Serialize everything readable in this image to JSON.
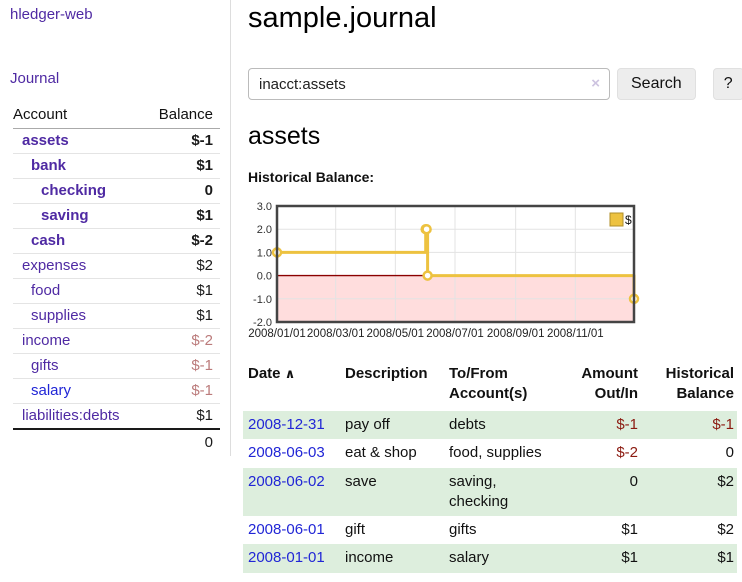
{
  "sidebar": {
    "app_title": "hledger-web",
    "journal_label": "Journal",
    "accounts_table": {
      "account_header": "Account",
      "balance_header": "Balance",
      "rows": [
        {
          "name": "assets",
          "balance": "$-1",
          "level": 1,
          "matched": true,
          "neg": true,
          "blue": false
        },
        {
          "name": "bank",
          "balance": "$1",
          "level": 2,
          "matched": true,
          "neg": false,
          "blue": false
        },
        {
          "name": "checking",
          "balance": "0",
          "level": 3,
          "matched": true,
          "neg": false,
          "blue": false
        },
        {
          "name": "saving",
          "balance": "$1",
          "level": 3,
          "matched": true,
          "neg": false,
          "blue": false
        },
        {
          "name": "cash",
          "balance": "$-2",
          "level": 2,
          "matched": true,
          "neg": true,
          "blue": false
        },
        {
          "name": "expenses",
          "balance": "$2",
          "level": 1,
          "matched": false,
          "neg": false,
          "blue": false
        },
        {
          "name": "food",
          "balance": "$1",
          "level": 2,
          "matched": false,
          "neg": false,
          "blue": false
        },
        {
          "name": "supplies",
          "balance": "$1",
          "level": 2,
          "matched": false,
          "neg": false,
          "blue": false
        },
        {
          "name": "income",
          "balance": "$-2",
          "level": 1,
          "matched": false,
          "neg": true,
          "blue": false
        },
        {
          "name": "gifts",
          "balance": "$-1",
          "level": 2,
          "matched": false,
          "neg": true,
          "blue": false
        },
        {
          "name": "salary",
          "balance": "$-1",
          "level": 2,
          "matched": false,
          "neg": true,
          "blue": true
        },
        {
          "name": "liabilities:debts",
          "balance": "$1",
          "level": 1,
          "matched": false,
          "neg": false,
          "blue": false
        }
      ],
      "total": "0"
    }
  },
  "header": {
    "title": "sample.journal"
  },
  "search": {
    "value": "inacct:assets",
    "clear_icon": "×",
    "button_label": "Search",
    "help_label": "?"
  },
  "account_page": {
    "heading": "assets",
    "chart_label": "Historical Balance:"
  },
  "chart_data": {
    "type": "line",
    "title": "Historical Balance",
    "style": "step-after",
    "xrange": [
      "2008-01-01",
      "2008-12-31"
    ],
    "ylim": [
      -2,
      3
    ],
    "yticks": [
      3.0,
      2.0,
      1.0,
      0.0,
      -1.0,
      -2.0
    ],
    "xticks": [
      {
        "label": "2008/01/01",
        "date": "2008-01-01"
      },
      {
        "label": "2008/03/01",
        "date": "2008-03-01"
      },
      {
        "label": "2008/05/01",
        "date": "2008-05-01"
      },
      {
        "label": "2008/07/01",
        "date": "2008-07-01"
      },
      {
        "label": "2008/09/01",
        "date": "2008-09-01"
      },
      {
        "label": "2008/11/01",
        "date": "2008-11-01"
      }
    ],
    "series": [
      {
        "name": "$",
        "color": "#EDC240",
        "points": [
          [
            "2008-01-01",
            1
          ],
          [
            "2008-06-01",
            2
          ],
          [
            "2008-06-02",
            2
          ],
          [
            "2008-06-03",
            0
          ],
          [
            "2008-12-31",
            -1
          ]
        ]
      }
    ],
    "legend_position": "top-right",
    "grid": true,
    "negative_region_color": "#ffdddd",
    "zero_line_color": "#8b0000",
    "border_color": "#444444",
    "grid_color": "#e3e3e3"
  },
  "register": {
    "headers": {
      "date": "Date",
      "sort_icon": "∧",
      "description": "Description",
      "accounts": "To/From Account(s)",
      "amount": "Amount Out/In",
      "balance": "Historical Balance"
    },
    "rows": [
      {
        "date": "2008-12-31",
        "description": "pay off",
        "accounts": "debts",
        "amount": "$-1",
        "amount_neg": true,
        "balance": "$-1",
        "balance_neg": true
      },
      {
        "date": "2008-06-03",
        "description": "eat & shop",
        "accounts": "food, supplies",
        "amount": "$-2",
        "amount_neg": true,
        "balance": "0",
        "balance_neg": false
      },
      {
        "date": "2008-06-02",
        "description": "save",
        "accounts": "saving, checking",
        "amount": "0",
        "amount_neg": false,
        "balance": "$2",
        "balance_neg": false
      },
      {
        "date": "2008-06-01",
        "description": "gift",
        "accounts": "gifts",
        "amount": "$1",
        "amount_neg": false,
        "balance": "$2",
        "balance_neg": false
      },
      {
        "date": "2008-01-01",
        "description": "income",
        "accounts": "salary",
        "amount": "$1",
        "amount_neg": false,
        "balance": "$1",
        "balance_neg": false
      }
    ]
  },
  "colors": {
    "link_purple": "#4f2aa3",
    "link_blue": "#2126d6",
    "negative_bold_red": "#8b1021",
    "negative_muted_red": "#bb7b7b",
    "register_negative_red": "#8b1a10",
    "row_green": "#ddeedd",
    "chart_yellow": "#EDC240"
  }
}
